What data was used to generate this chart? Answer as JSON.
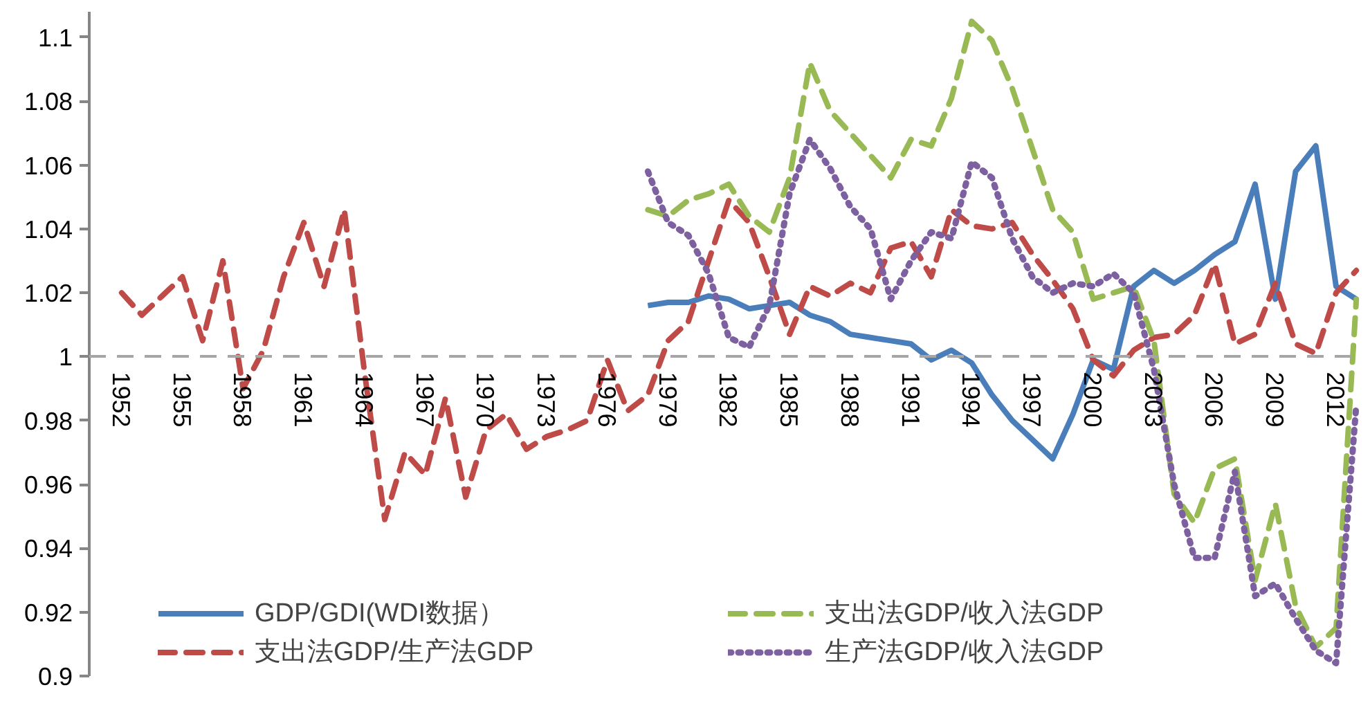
{
  "chart_data": {
    "type": "line",
    "x": [
      1952,
      1953,
      1954,
      1955,
      1956,
      1957,
      1958,
      1959,
      1960,
      1961,
      1962,
      1963,
      1964,
      1965,
      1966,
      1967,
      1968,
      1969,
      1970,
      1971,
      1972,
      1973,
      1974,
      1975,
      1976,
      1977,
      1978,
      1979,
      1980,
      1981,
      1982,
      1983,
      1984,
      1985,
      1986,
      1987,
      1988,
      1989,
      1990,
      1991,
      1992,
      1993,
      1994,
      1995,
      1996,
      1997,
      1998,
      1999,
      2000,
      2001,
      2002,
      2003,
      2004,
      2005,
      2006,
      2007,
      2008,
      2009,
      2010,
      2011,
      2012,
      2013
    ],
    "series": [
      {
        "name": "GDP/GDI(WDI数据）",
        "color": "#4a7ebb",
        "line_style": "solid",
        "values": [
          null,
          null,
          null,
          null,
          null,
          null,
          null,
          null,
          null,
          null,
          null,
          null,
          null,
          null,
          null,
          null,
          null,
          null,
          null,
          null,
          null,
          null,
          null,
          null,
          null,
          null,
          1.016,
          1.017,
          1.017,
          1.019,
          1.018,
          1.015,
          1.016,
          1.017,
          1.013,
          1.011,
          1.007,
          1.006,
          1.005,
          1.004,
          0.999,
          1.002,
          0.998,
          0.988,
          0.98,
          0.974,
          0.968,
          0.982,
          0.999,
          0.996,
          1.022,
          1.027,
          1.023,
          1.027,
          1.032,
          1.036,
          1.054,
          1.018,
          1.058,
          1.066,
          1.022,
          1.018
        ]
      },
      {
        "name": "支出法GDP/生产法GDP",
        "color": "#be4b48",
        "line_style": "dashed",
        "values": [
          1.02,
          1.013,
          1.019,
          1.025,
          1.005,
          1.03,
          0.99,
          1.002,
          1.025,
          1.042,
          1.022,
          1.046,
          0.995,
          0.949,
          0.97,
          0.963,
          0.987,
          0.956,
          0.977,
          0.982,
          0.971,
          0.975,
          0.977,
          0.98,
          0.999,
          0.983,
          0.988,
          1.005,
          1.011,
          1.03,
          1.049,
          1.042,
          1.025,
          1.007,
          1.022,
          1.019,
          1.023,
          1.02,
          1.034,
          1.036,
          1.025,
          1.046,
          1.041,
          1.04,
          1.042,
          1.032,
          1.024,
          1.015,
          0.999,
          0.994,
          1.002,
          1.006,
          1.007,
          1.013,
          1.029,
          1.004,
          1.007,
          1.023,
          1.004,
          1.001,
          1.02,
          1.027
        ]
      },
      {
        "name": "支出法GDP/收入法GDP",
        "color": "#98b954",
        "line_style": "dashed",
        "values": [
          null,
          null,
          null,
          null,
          null,
          null,
          null,
          null,
          null,
          null,
          null,
          null,
          null,
          null,
          null,
          null,
          null,
          null,
          null,
          null,
          null,
          null,
          null,
          null,
          null,
          null,
          1.046,
          1.044,
          1.049,
          1.051,
          1.054,
          1.044,
          1.039,
          1.056,
          1.092,
          1.077,
          1.07,
          1.063,
          1.056,
          1.068,
          1.066,
          1.081,
          1.105,
          1.099,
          1.084,
          1.065,
          1.046,
          1.039,
          1.018,
          1.02,
          1.022,
          1.005,
          0.957,
          0.948,
          0.965,
          0.968,
          0.93,
          0.954,
          0.922,
          0.909,
          0.915,
          1.018
        ]
      },
      {
        "name": "生产法GDP/收入法GDP",
        "color": "#7d60a0",
        "line_style": "dotted",
        "values": [
          null,
          null,
          null,
          null,
          null,
          null,
          null,
          null,
          null,
          null,
          null,
          null,
          null,
          null,
          null,
          null,
          null,
          null,
          null,
          null,
          null,
          null,
          null,
          null,
          null,
          null,
          1.058,
          1.042,
          1.038,
          1.026,
          1.006,
          1.003,
          1.016,
          1.051,
          1.068,
          1.059,
          1.047,
          1.04,
          1.018,
          1.03,
          1.039,
          1.037,
          1.061,
          1.056,
          1.037,
          1.025,
          1.02,
          1.023,
          1.022,
          1.026,
          1.02,
          0.996,
          0.96,
          0.937,
          0.937,
          0.964,
          0.925,
          0.929,
          0.918,
          0.908,
          0.904,
          0.985
        ]
      }
    ],
    "xlim": [
      1950.4,
      2013.3
    ],
    "xticks": [
      1952,
      1955,
      1958,
      1961,
      1964,
      1967,
      1970,
      1973,
      1976,
      1979,
      1982,
      1985,
      1988,
      1991,
      1994,
      1997,
      2000,
      2003,
      2006,
      2009,
      2012
    ],
    "ylim": [
      0.9,
      1.108
    ],
    "yticks": [
      0.9,
      0.92,
      0.94,
      0.96,
      0.98,
      1,
      1.02,
      1.04,
      1.06,
      1.08,
      1.1
    ],
    "ref_lines": [
      {
        "axis": "y",
        "value": 1,
        "color": "#a6a6a6",
        "line_style": "dashed"
      }
    ],
    "grid": false,
    "legend": "bottom"
  }
}
